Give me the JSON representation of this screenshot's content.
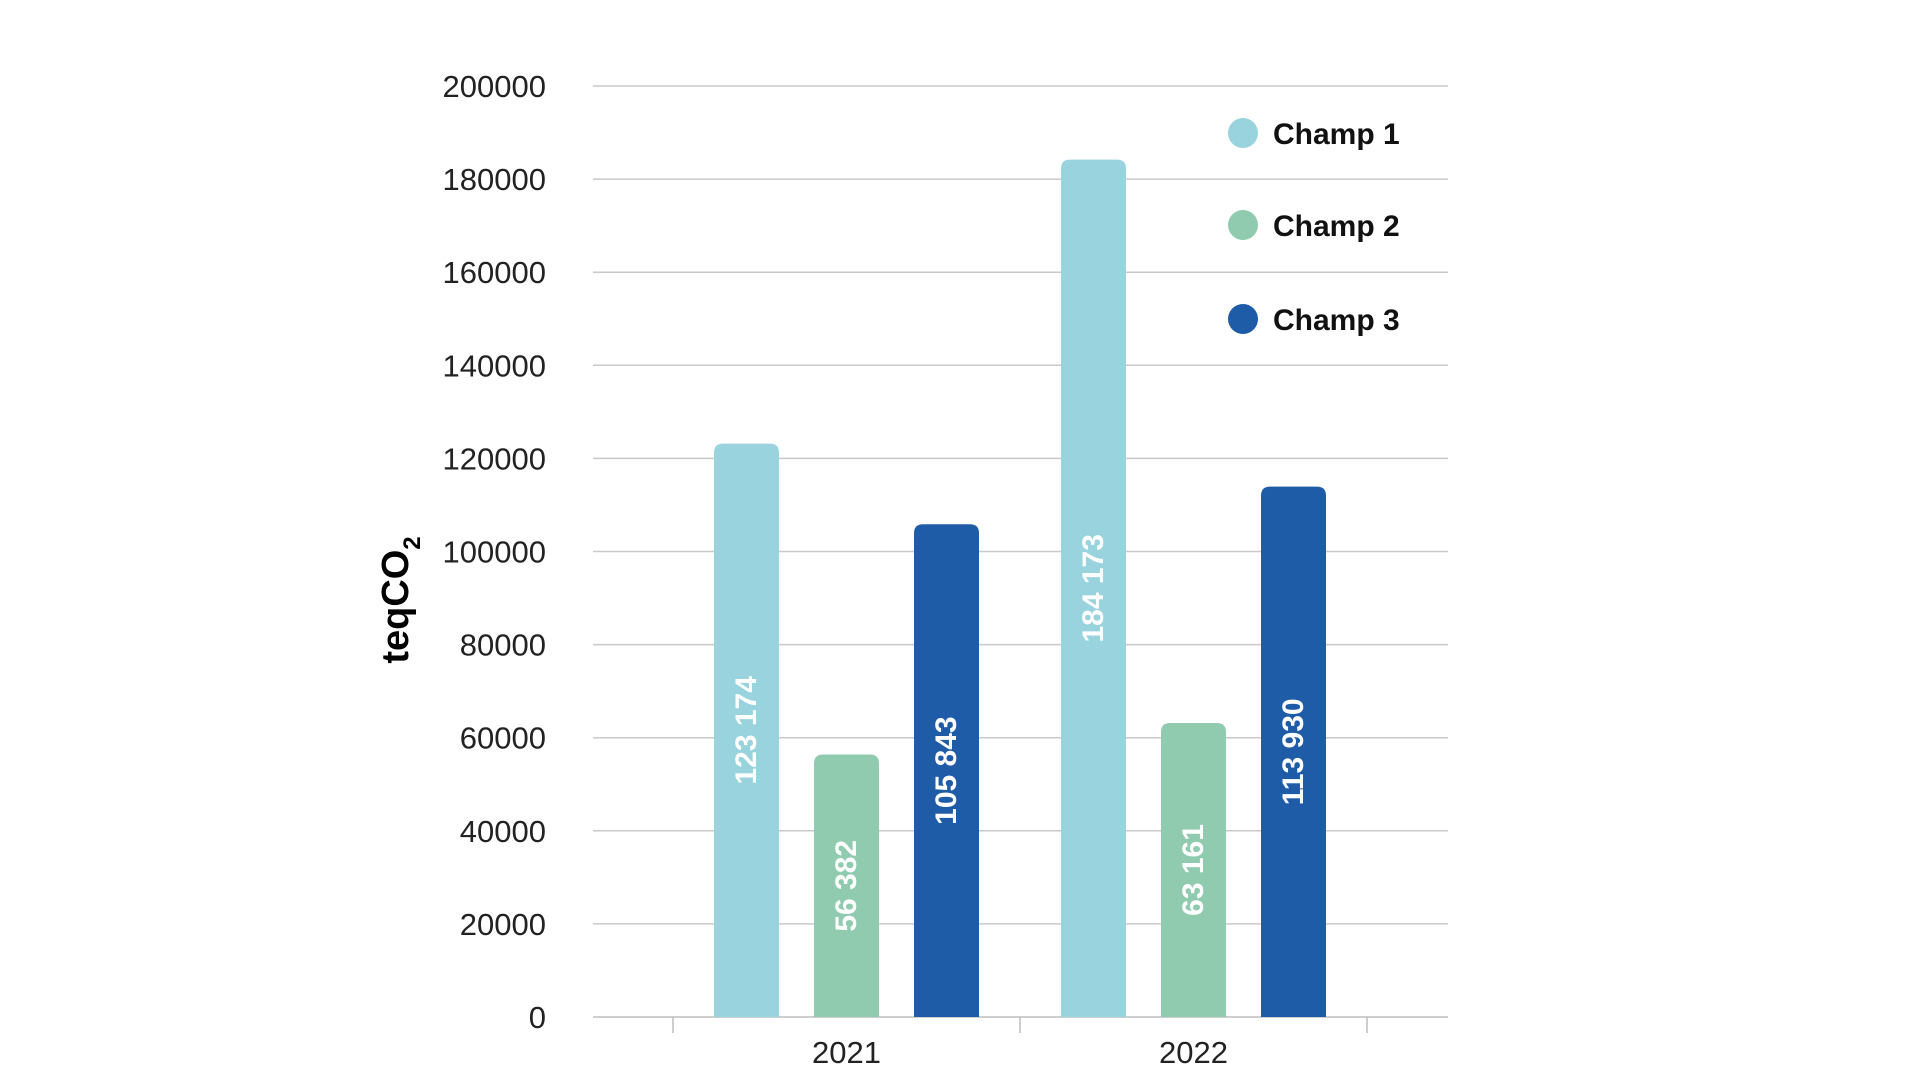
{
  "chart_data": {
    "type": "bar",
    "categories": [
      "2021",
      "2022"
    ],
    "series": [
      {
        "name": "Champ 1",
        "color": "#98d3de",
        "values": [
          123174,
          184173
        ],
        "labels": [
          "123 174",
          "184 173"
        ]
      },
      {
        "name": "Champ 2",
        "color": "#90cbb0",
        "values": [
          56382,
          63161
        ],
        "labels": [
          "56 382",
          "63 161"
        ]
      },
      {
        "name": "Champ 3",
        "color": "#1e5ca8",
        "values": [
          105843,
          113930
        ],
        "labels": [
          "105 843",
          "113 930"
        ]
      }
    ],
    "ylabel_main": "teqCO",
    "ylabel_sub": "2",
    "ylim": [
      0,
      200000
    ],
    "yticks": [
      0,
      20000,
      40000,
      60000,
      80000,
      100000,
      120000,
      140000,
      160000,
      180000,
      200000
    ],
    "grid": true,
    "legend": "top-right"
  }
}
